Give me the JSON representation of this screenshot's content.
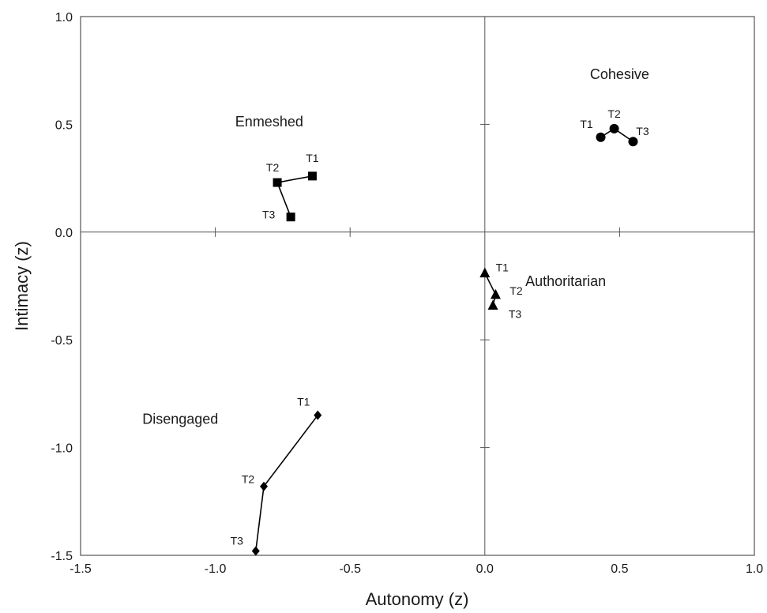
{
  "chart_data": {
    "type": "scatter",
    "title": "",
    "xlabel": "Autonomy (z)",
    "ylabel": "Intimacy (z)",
    "xlim": [
      -1.5,
      1.0
    ],
    "ylim": [
      -1.5,
      1.0
    ],
    "x_ticks": [
      -1.5,
      -1.0,
      -0.5,
      0.0,
      0.5,
      1.0
    ],
    "y_ticks": [
      -1.5,
      -1.0,
      -0.5,
      0.0,
      0.5,
      1.0
    ],
    "x_tick_labels": [
      "-1.5",
      "-1.0",
      "-0.5",
      "0.0",
      "0.5",
      "1.0"
    ],
    "y_tick_labels": [
      "-1.5",
      "-1.0",
      "-0.5",
      "0.0",
      "0.5",
      "1.0"
    ],
    "grid": false,
    "zero_lines": true,
    "series": [
      {
        "name": "Cohesive",
        "marker": "circle",
        "points": [
          {
            "label": "T1",
            "x": 0.43,
            "y": 0.44
          },
          {
            "label": "T2",
            "x": 0.48,
            "y": 0.48
          },
          {
            "label": "T3",
            "x": 0.55,
            "y": 0.42
          }
        ]
      },
      {
        "name": "Enmeshed",
        "marker": "square",
        "points": [
          {
            "label": "T1",
            "x": -0.64,
            "y": 0.26
          },
          {
            "label": "T2",
            "x": -0.77,
            "y": 0.23
          },
          {
            "label": "T3",
            "x": -0.72,
            "y": 0.07
          }
        ]
      },
      {
        "name": "Authoritarian",
        "marker": "triangle",
        "points": [
          {
            "label": "T1",
            "x": 0.0,
            "y": -0.19
          },
          {
            "label": "T2",
            "x": 0.04,
            "y": -0.29
          },
          {
            "label": "T3",
            "x": 0.03,
            "y": -0.34
          }
        ]
      },
      {
        "name": "Disengaged",
        "marker": "diamond",
        "points": [
          {
            "label": "T1",
            "x": -0.62,
            "y": -0.85
          },
          {
            "label": "T2",
            "x": -0.82,
            "y": -1.18
          },
          {
            "label": "T3",
            "x": -0.85,
            "y": -1.48
          }
        ]
      }
    ],
    "quadrant_labels": [
      {
        "text": "Cohesive",
        "x": 0.5,
        "y": 0.71
      },
      {
        "text": "Enmeshed",
        "x": -0.8,
        "y": 0.49
      },
      {
        "text": "Authoritarian",
        "x": 0.3,
        "y": -0.25
      },
      {
        "text": "Disengaged",
        "x": -1.13,
        "y": -0.89
      }
    ]
  }
}
